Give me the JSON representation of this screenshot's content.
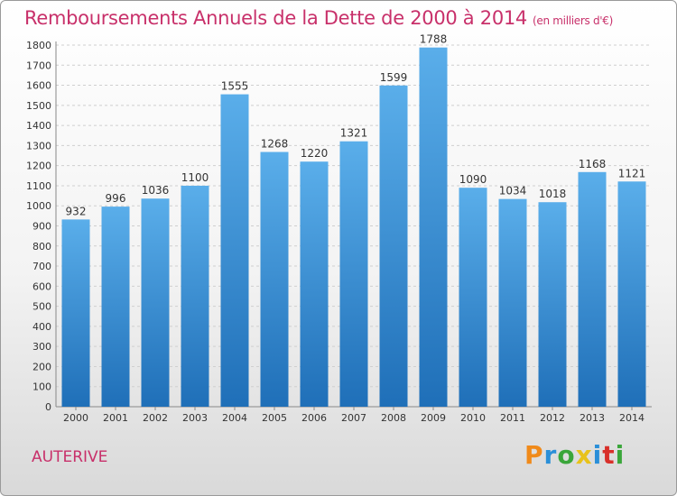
{
  "header": {
    "title": "Remboursements Annuels de la Dette de 2000 à 2014",
    "subtitle": "(en milliers d'€)"
  },
  "footer": {
    "city": "AUTERIVE",
    "logo": "Proxiti"
  },
  "chart_data": {
    "type": "bar",
    "title": "Remboursements Annuels de la Dette de 2000 à 2014",
    "subtitle": "(en milliers d'€)",
    "xlabel": "",
    "ylabel": "",
    "categories": [
      "2000",
      "2001",
      "2002",
      "2003",
      "2004",
      "2005",
      "2006",
      "2007",
      "2008",
      "2009",
      "2010",
      "2011",
      "2012",
      "2013",
      "2014"
    ],
    "values": [
      932,
      996,
      1036,
      1100,
      1555,
      1268,
      1220,
      1321,
      1599,
      1788,
      1090,
      1034,
      1018,
      1168,
      1121
    ],
    "ylim": [
      0,
      1800
    ],
    "yticks": [
      0,
      100,
      200,
      300,
      400,
      500,
      600,
      700,
      800,
      900,
      1000,
      1100,
      1200,
      1300,
      1400,
      1500,
      1600,
      1700,
      1800
    ],
    "grid": true,
    "bar_color": "#3a8fd8"
  }
}
